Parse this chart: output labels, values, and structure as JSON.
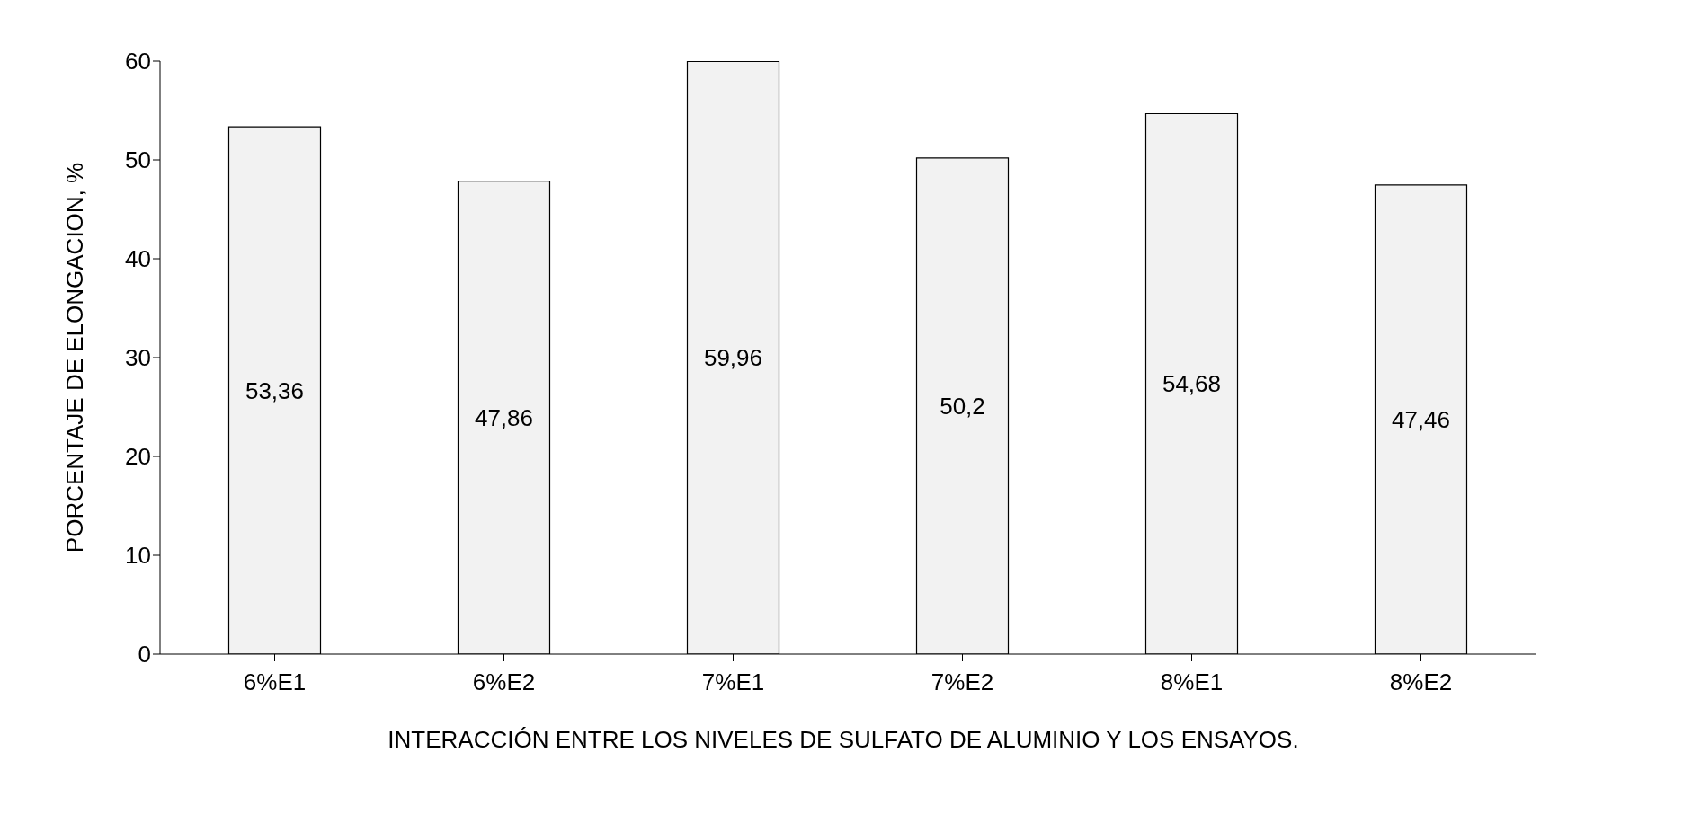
{
  "chart_data": {
    "type": "bar",
    "ylabel": "PORCENTAJE DE ELONGACION, %",
    "xlabel": "INTERACCIÓN ENTRE LOS NIVELES DE SULFATO DE ALUMINIO Y LOS ENSAYOS.",
    "categories": [
      "6%E1",
      "6%E2",
      "7%E1",
      "7%E2",
      "8%E1",
      "8%E2"
    ],
    "values": [
      53.36,
      47.86,
      59.96,
      50.2,
      54.68,
      47.46
    ],
    "value_labels": [
      "53,36",
      "47,86",
      "59,96",
      "50,2",
      "54,68",
      "47,46"
    ],
    "color": "#f2f2f2",
    "ylim": [
      0,
      60
    ],
    "yticks": [
      0,
      10,
      20,
      30,
      40,
      50,
      60
    ],
    "grid": false,
    "legend": false
  }
}
